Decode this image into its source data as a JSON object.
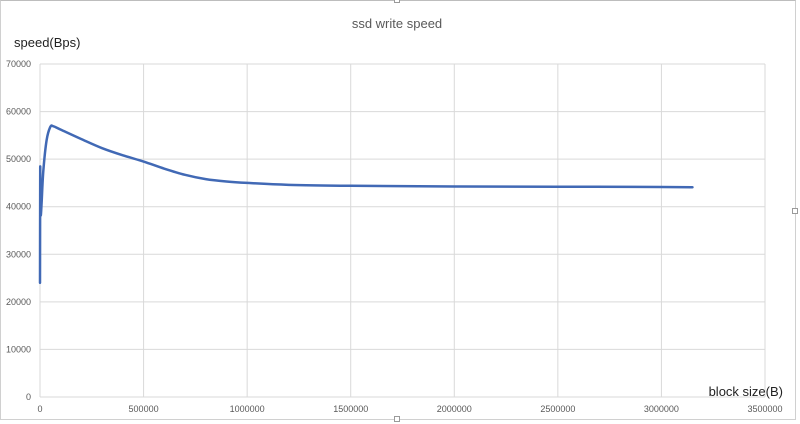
{
  "chart_data": {
    "type": "scatter",
    "title": "ssd write speed",
    "ylabel": "speed(Bps)",
    "xlabel": "block size(B)",
    "xlim": [
      0,
      3500000
    ],
    "ylim": [
      0,
      70000
    ],
    "grid": true,
    "legend": "none",
    "x_ticks": [
      "0",
      "500000",
      "1000000",
      "1500000",
      "2000000",
      "2500000",
      "3000000",
      "3500000"
    ],
    "y_ticks": [
      "0",
      "10000",
      "20000",
      "30000",
      "40000",
      "50000",
      "60000",
      "70000"
    ],
    "series": [
      {
        "color": "#4169b5",
        "x": [
          0,
          1000,
          2000,
          4000,
          8000,
          16000,
          32000,
          50000,
          65000,
          100000,
          200000,
          300000,
          400000,
          500000,
          600000,
          700000,
          800000,
          900000,
          1000000,
          1200000,
          1500000,
          2000000,
          2500000,
          3000000,
          3150000
        ],
        "y": [
          24000,
          48000,
          40000,
          38200,
          41000,
          47500,
          54000,
          56800,
          56900,
          56200,
          54200,
          52300,
          50800,
          49500,
          48000,
          46700,
          45800,
          45300,
          45000,
          44600,
          44400,
          44250,
          44200,
          44150,
          44100
        ]
      }
    ]
  }
}
